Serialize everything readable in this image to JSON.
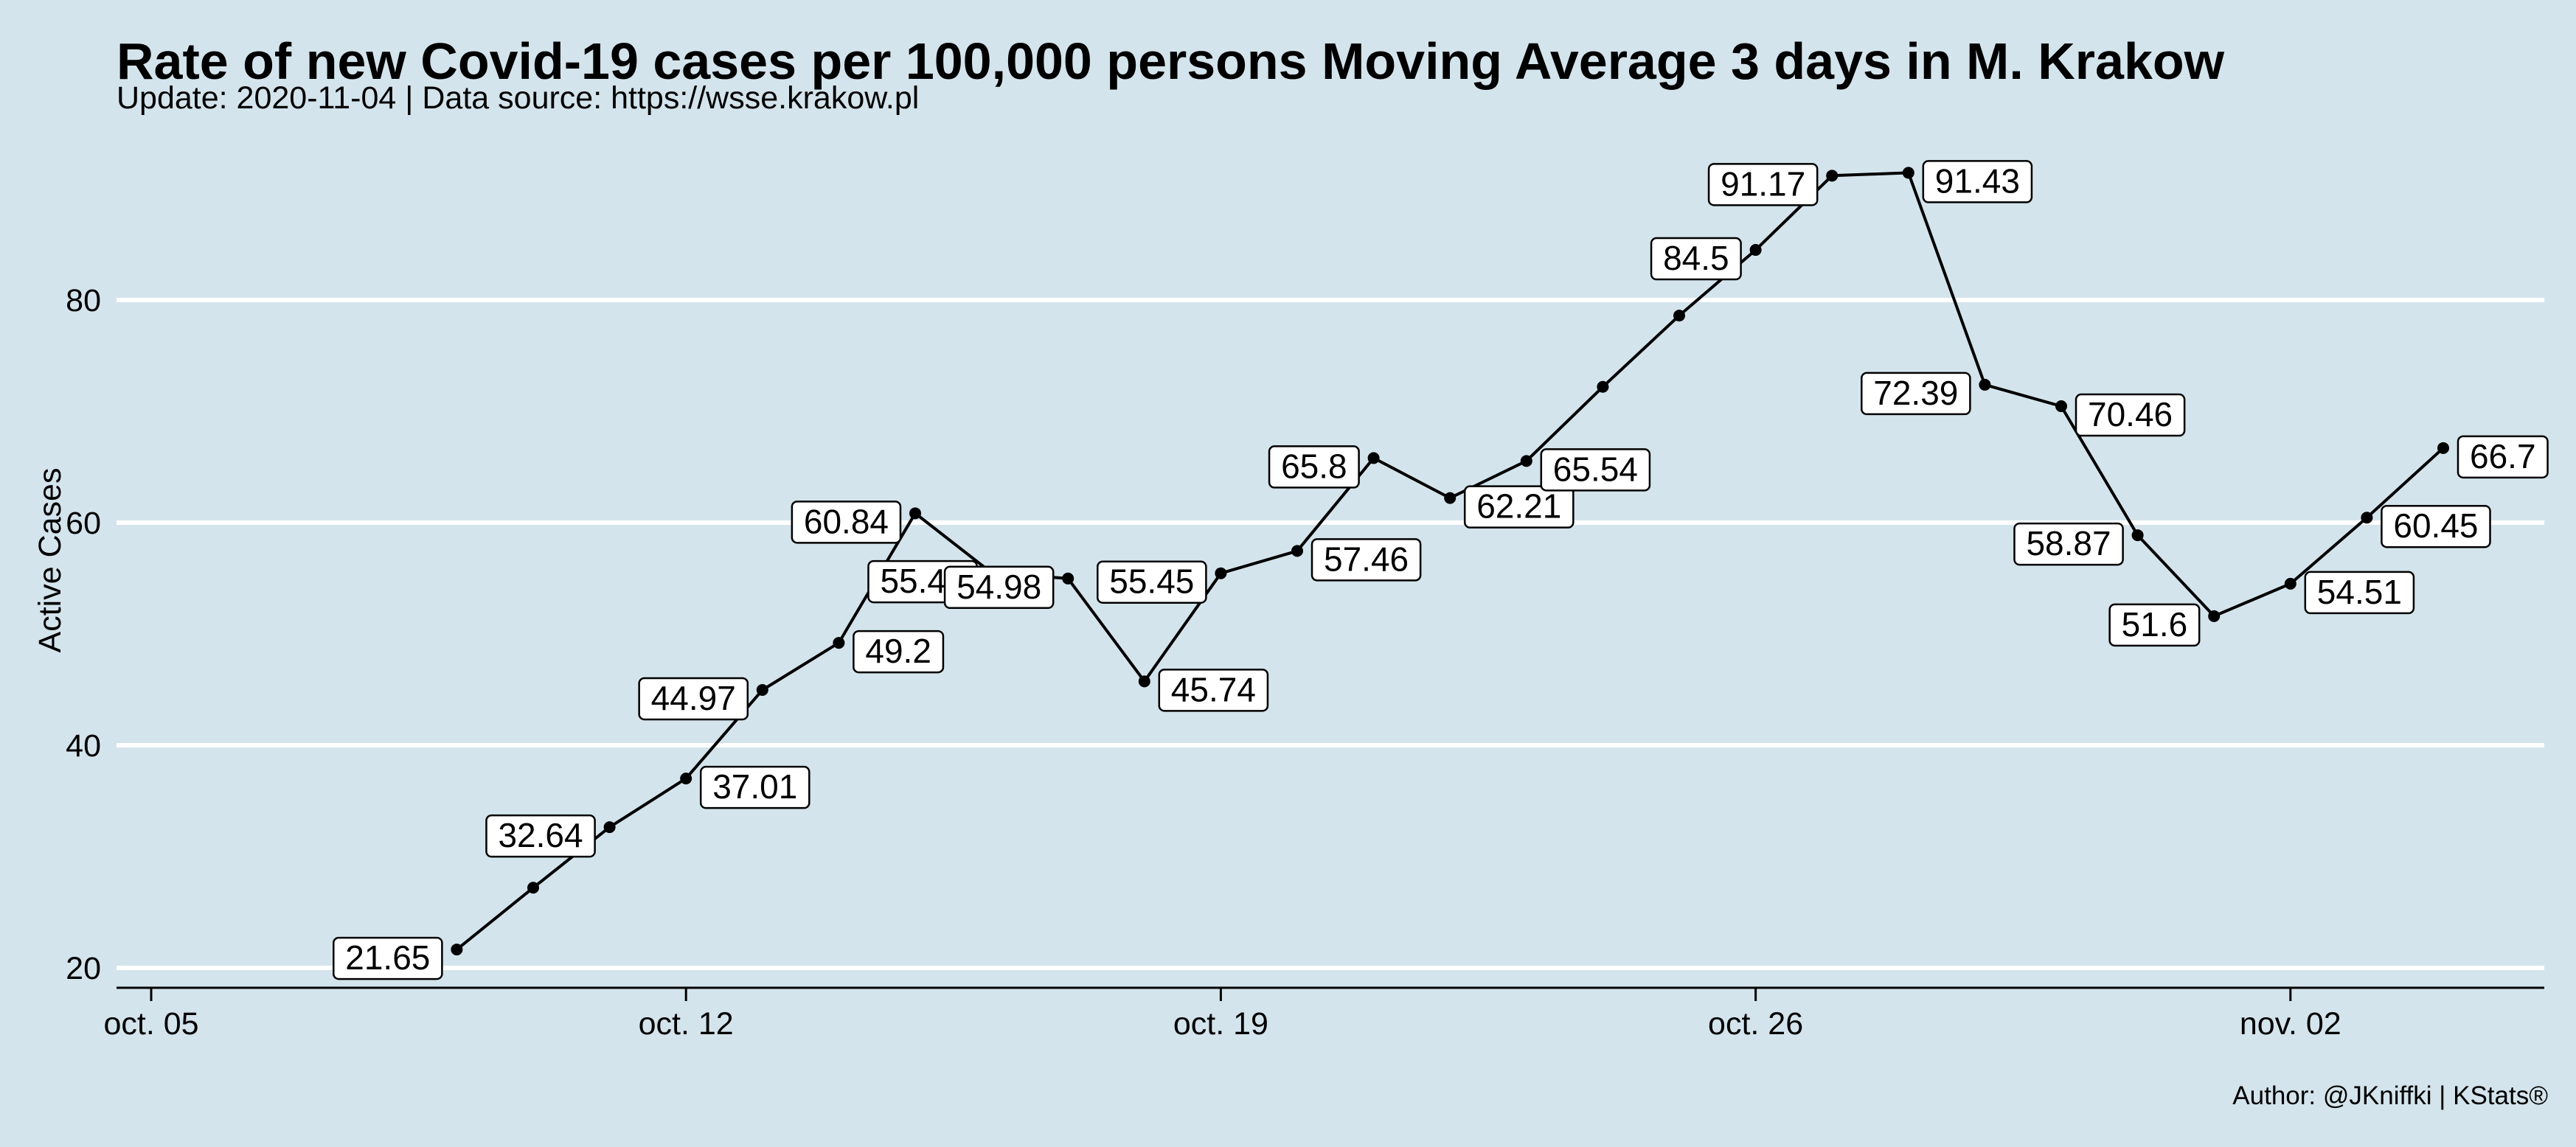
{
  "chart_data": {
    "type": "line",
    "title": "Rate of new Covid-19 cases per 100,000 persons Moving Average 3 days in M. Krakow",
    "subtitle": "Update: 2020-11-04 | Data source: https://wsse.krakow.pl",
    "caption": "Author: @JKniffki | KStats®",
    "xlabel": "",
    "ylabel": "Active Cases",
    "x_tick_labels": [
      "oct. 05",
      "oct. 12",
      "oct. 19",
      "oct. 26",
      "nov. 02"
    ],
    "y_ticks": [
      20,
      40,
      60,
      80
    ],
    "xlim": [
      "2020-10-05",
      "2020-11-05"
    ],
    "ylim": [
      20,
      95
    ],
    "grid": "horizontal",
    "line_color": "#000000",
    "background_color": "#d4e4ec",
    "grid_color": "#ffffff",
    "series": [
      {
        "points": [
          {
            "x": "2020-10-09",
            "y": 21.65,
            "label": "21.65",
            "label_side": "left"
          },
          {
            "x": "2020-10-10",
            "y": 27.2
          },
          {
            "x": "2020-10-11",
            "y": 32.64,
            "label": "32.64",
            "label_side": "left"
          },
          {
            "x": "2020-10-12",
            "y": 37.01,
            "label": "37.01",
            "label_side": "right"
          },
          {
            "x": "2020-10-13",
            "y": 44.97,
            "label": "44.97",
            "label_side": "left"
          },
          {
            "x": "2020-10-14",
            "y": 49.2,
            "label": "49.2",
            "label_side": "right"
          },
          {
            "x": "2020-10-15",
            "y": 60.84,
            "label": "60.84",
            "label_side": "left"
          },
          {
            "x": "2020-10-16",
            "y": 55.49,
            "label": "55.49",
            "label_side": "left"
          },
          {
            "x": "2020-10-17",
            "y": 54.98,
            "label": "54.98",
            "label_side": "left"
          },
          {
            "x": "2020-10-18",
            "y": 45.74,
            "label": "45.74",
            "label_side": "right"
          },
          {
            "x": "2020-10-19",
            "y": 55.45,
            "label": "55.45",
            "label_side": "left"
          },
          {
            "x": "2020-10-20",
            "y": 57.46,
            "label": "57.46",
            "label_side": "right"
          },
          {
            "x": "2020-10-21",
            "y": 65.8,
            "label": "65.8",
            "label_side": "left"
          },
          {
            "x": "2020-10-22",
            "y": 62.21,
            "label": "62.21",
            "label_side": "right"
          },
          {
            "x": "2020-10-23",
            "y": 65.54,
            "label": "65.54",
            "label_side": "right"
          },
          {
            "x": "2020-10-24",
            "y": 72.2
          },
          {
            "x": "2020-10-25",
            "y": 78.6
          },
          {
            "x": "2020-10-26",
            "y": 84.5,
            "label": "84.5",
            "label_side": "left"
          },
          {
            "x": "2020-10-27",
            "y": 91.17,
            "label": "91.17",
            "label_side": "left"
          },
          {
            "x": "2020-10-28",
            "y": 91.43,
            "label": "91.43",
            "label_side": "right"
          },
          {
            "x": "2020-10-29",
            "y": 72.39,
            "label": "72.39",
            "label_side": "left"
          },
          {
            "x": "2020-10-30",
            "y": 70.46,
            "label": "70.46",
            "label_side": "right"
          },
          {
            "x": "2020-10-31",
            "y": 58.87,
            "label": "58.87",
            "label_side": "left"
          },
          {
            "x": "2020-11-01",
            "y": 51.6,
            "label": "51.6",
            "label_side": "left"
          },
          {
            "x": "2020-11-02",
            "y": 54.51,
            "label": "54.51",
            "label_side": "right"
          },
          {
            "x": "2020-11-03",
            "y": 60.45,
            "label": "60.45",
            "label_side": "right"
          },
          {
            "x": "2020-11-04",
            "y": 66.7,
            "label": "66.7",
            "label_side": "right"
          }
        ]
      }
    ]
  }
}
